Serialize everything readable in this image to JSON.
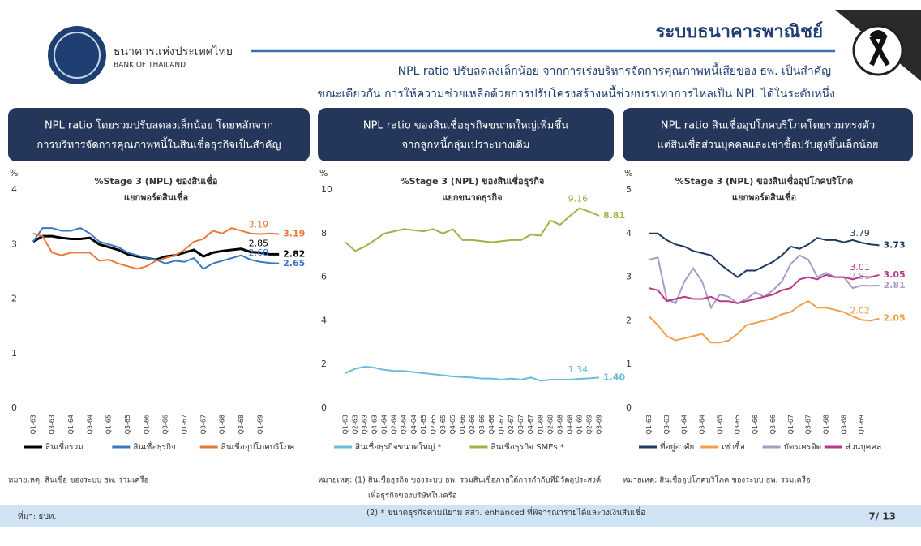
{
  "header": {
    "bank_name_th": "ธนาคารแห่งประเทศไทย",
    "bank_name_en": "BANK OF THAILAND",
    "title": "ระบบธนาคารพาณิชย์",
    "subtitle": [
      "NPL ratio ปรับลดลงเล็กน้อย จากการเร่งบริหารจัดการคุณภาพหนี้เสียของ ธพ. เป็นสำคัญ",
      "ขณะเดียวกัน การให้ความช่วยเหลือด้วยการปรับโครงสร้างหนี้ช่วยบรรเทาการไหลเป็น NPL ได้ในระดับหนึ่ง"
    ]
  },
  "panels": [
    {
      "heading": [
        "NPL ratio โดยรวมปรับลดลงเล็กน้อย โดยหลักจาก",
        "การบริหารจัดการคุณภาพหนี้ในสินเชื่อธุรกิจเป็นสำคัญ"
      ],
      "note": [
        "หมายเหตุ: สินเชื่อ ของระบบ ธพ. รวมเครือ"
      ]
    },
    {
      "heading": [
        "NPL ratio ของสินเชื่อธุรกิจขนาดใหญ่เพิ่มขึ้น",
        "จากลูกหนี้กลุ่มเปราะบางเดิม"
      ],
      "note": [
        "หมายเหตุ: (1) สินเชื่อธุรกิจ ของระบบ ธพ. รวมสินเชื่อภายใต้การกำกับที่มีวัตถุประสงค์",
        "เพื่อธุรกิจของบริษัทในเครือ"
      ]
    },
    {
      "heading": [
        "NPL ratio สินเชื่ออุปโภคบริโภคโดยรวมทรงตัว",
        "แต่สินเชื่อส่วนบุคคลและเช่าซื้อปรับสูงขึ้นเล็กน้อย"
      ],
      "note": [
        "หมายเหตุ: สินเชื่ออุปโภคบริโภค ของระบบ ธพ. รวมเครือ"
      ]
    }
  ],
  "footer": {
    "source": "ที่มา: ธปท.",
    "footnote": "(2) * ขนาดธุรกิจตามนิยาม สสว. enhanced ที่พิจารณารายได้และวงเงินสินเชื่อ",
    "page": "7/ 13"
  },
  "chart_data": [
    {
      "type": "line",
      "title": "%Stage 3 (NPL) ของสินเชื่อ",
      "subtitle": "แยกพอร์ตสินเชื่อ",
      "ylabel": "%",
      "ylim": [
        0,
        4
      ],
      "yticks": [
        0,
        1,
        2,
        3,
        4
      ],
      "grid": false,
      "categories": [
        "Q1-63",
        null,
        "Q3-63",
        null,
        "Q1-64",
        null,
        "Q3-64",
        null,
        "Q1-65",
        null,
        "Q3-65",
        null,
        "Q1-66",
        null,
        "Q3-66",
        null,
        "Q1-67",
        null,
        "Q3-67",
        null,
        "Q1-68",
        null,
        "Q3-68",
        null,
        "Q1-69",
        null,
        null
      ],
      "series": [
        {
          "name": "สินเชื่อรวม",
          "color": "#000000",
          "values": [
            3.05,
            3.15,
            3.15,
            3.12,
            3.1,
            3.1,
            3.12,
            3.0,
            2.95,
            2.9,
            2.82,
            2.78,
            2.75,
            2.72,
            2.78,
            2.8,
            2.85,
            2.9,
            2.78,
            2.85,
            2.88,
            2.9,
            2.92,
            2.86,
            2.85,
            2.82,
            2.82
          ],
          "value_labels": [
            null,
            null,
            null,
            null,
            null,
            null,
            null,
            null,
            null,
            null,
            null,
            null,
            null,
            null,
            null,
            null,
            null,
            null,
            null,
            null,
            null,
            null,
            null,
            null,
            "2.85",
            null,
            "2.82"
          ]
        },
        {
          "name": "สินเชื่อธุรกิจ",
          "color": "#3b78c4",
          "values": [
            3.05,
            3.3,
            3.3,
            3.25,
            3.25,
            3.3,
            3.2,
            3.05,
            3.0,
            2.95,
            2.85,
            2.8,
            2.75,
            2.72,
            2.65,
            2.7,
            2.68,
            2.75,
            2.55,
            2.65,
            2.7,
            2.75,
            2.8,
            2.72,
            2.68,
            2.66,
            2.65
          ],
          "value_labels": [
            null,
            null,
            null,
            null,
            null,
            null,
            null,
            null,
            null,
            null,
            null,
            null,
            null,
            null,
            null,
            null,
            null,
            null,
            null,
            null,
            null,
            null,
            null,
            null,
            "2.68",
            null,
            "2.65"
          ]
        },
        {
          "name": "สินเชื่ออุปโภคบริโภค",
          "color": "#e8793a",
          "values": [
            3.2,
            3.15,
            2.85,
            2.8,
            2.85,
            2.85,
            2.85,
            2.7,
            2.72,
            2.65,
            2.6,
            2.55,
            2.6,
            2.7,
            2.75,
            2.8,
            2.9,
            3.05,
            3.1,
            3.25,
            3.2,
            3.3,
            3.25,
            3.2,
            3.19,
            3.2,
            3.19
          ],
          "value_labels": [
            null,
            null,
            null,
            null,
            null,
            null,
            null,
            null,
            null,
            null,
            null,
            null,
            null,
            null,
            null,
            null,
            null,
            null,
            null,
            null,
            null,
            null,
            null,
            null,
            "3.19",
            null,
            "3.19"
          ]
        }
      ]
    },
    {
      "type": "line",
      "title": "%Stage 3 (NPL) ของสินเชื่อธุรกิจ",
      "subtitle": "แยกขนาดธุรกิจ",
      "ylabel": "%",
      "ylim": [
        0,
        10
      ],
      "yticks": [
        0,
        2,
        4,
        6,
        8,
        10
      ],
      "grid": false,
      "categories": [
        "Q1-63",
        "Q2-63",
        "Q3-63",
        "Q4-63",
        "Q1-64",
        "Q2-64",
        "Q3-64",
        "Q4-64",
        "Q1-65",
        "Q2-65",
        "Q3-65",
        "Q4-65",
        "Q1-66",
        "Q2-66",
        "Q3-66",
        "Q4-66",
        "Q1-67",
        "Q2-67",
        "Q3-67",
        "Q4-67",
        "Q1-68",
        "Q2-68",
        "Q3-68",
        "Q4-68",
        "Q1-69",
        "Q2-69",
        "Q3-69"
      ],
      "series": [
        {
          "name": "สินเชื่อธุรกิจขนาดใหญ่ *",
          "color": "#6bbcd6",
          "values": [
            1.6,
            1.8,
            1.9,
            1.85,
            1.75,
            1.7,
            1.7,
            1.65,
            1.6,
            1.55,
            1.5,
            1.45,
            1.42,
            1.4,
            1.35,
            1.35,
            1.3,
            1.35,
            1.3,
            1.4,
            1.25,
            1.3,
            1.3,
            1.3,
            1.34,
            1.36,
            1.4
          ],
          "value_labels": [
            null,
            null,
            null,
            null,
            null,
            null,
            null,
            null,
            null,
            null,
            null,
            null,
            null,
            null,
            null,
            null,
            null,
            null,
            null,
            null,
            null,
            null,
            null,
            null,
            "1.34",
            null,
            "1.40"
          ]
        },
        {
          "name": "สินเชื่อธุรกิจ SMEs *",
          "color": "#9bb544",
          "values": [
            7.6,
            7.2,
            7.4,
            7.7,
            8.0,
            8.1,
            8.2,
            8.15,
            8.1,
            8.2,
            8.0,
            8.2,
            7.7,
            7.7,
            7.65,
            7.6,
            7.65,
            7.7,
            7.7,
            7.95,
            7.9,
            8.6,
            8.4,
            8.8,
            9.16,
            9.0,
            8.81
          ],
          "value_labels": [
            null,
            null,
            null,
            null,
            null,
            null,
            null,
            null,
            null,
            null,
            null,
            null,
            null,
            null,
            null,
            null,
            null,
            null,
            null,
            null,
            null,
            null,
            null,
            null,
            "9.16",
            null,
            "8.81"
          ]
        }
      ]
    },
    {
      "type": "line",
      "title": "%Stage 3 (NPL) ของสินเชื่ออุปโภคบริโภค",
      "subtitle": "แยกพอร์ตสินเชื่อ",
      "ylabel": "%",
      "ylim": [
        0,
        5
      ],
      "yticks": [
        0,
        1,
        2,
        3,
        4,
        5
      ],
      "grid": false,
      "categories": [
        "Q1-63",
        null,
        "Q3-63",
        null,
        "Q1-64",
        null,
        "Q3-64",
        null,
        "Q1-65",
        null,
        "Q3-65",
        null,
        "Q1-66",
        null,
        "Q3-66",
        null,
        "Q1-67",
        null,
        "Q3-67",
        null,
        "Q1-68",
        null,
        "Q3-68",
        null,
        "Q1-69",
        null,
        null
      ],
      "series": [
        {
          "name": "ที่อยู่อาศัย",
          "color": "#1f3a5f",
          "values": [
            4.0,
            4.0,
            3.85,
            3.75,
            3.7,
            3.6,
            3.55,
            3.5,
            3.3,
            3.15,
            3.0,
            3.15,
            3.15,
            3.25,
            3.35,
            3.5,
            3.7,
            3.65,
            3.75,
            3.9,
            3.85,
            3.85,
            3.8,
            3.85,
            3.79,
            3.75,
            3.73
          ],
          "value_labels": [
            null,
            null,
            null,
            null,
            null,
            null,
            null,
            null,
            null,
            null,
            null,
            null,
            null,
            null,
            null,
            null,
            null,
            null,
            null,
            null,
            null,
            null,
            null,
            null,
            "3.79",
            null,
            "3.73"
          ]
        },
        {
          "name": "เช่าซื้อ",
          "color": "#f0a048",
          "values": [
            2.1,
            1.9,
            1.65,
            1.55,
            1.6,
            1.65,
            1.7,
            1.5,
            1.5,
            1.55,
            1.7,
            1.9,
            1.95,
            2.0,
            2.05,
            2.15,
            2.2,
            2.35,
            2.45,
            2.3,
            2.3,
            2.25,
            2.2,
            2.1,
            2.02,
            2.0,
            2.05
          ],
          "value_labels": [
            null,
            null,
            null,
            null,
            null,
            null,
            null,
            null,
            null,
            null,
            null,
            null,
            null,
            null,
            null,
            null,
            null,
            null,
            null,
            null,
            null,
            null,
            null,
            null,
            "2.02",
            null,
            "2.05"
          ]
        },
        {
          "name": "บัตรเครดิต",
          "color": "#a89bc8",
          "values": [
            3.4,
            3.45,
            2.5,
            2.4,
            2.9,
            3.2,
            2.9,
            2.3,
            2.6,
            2.55,
            2.4,
            2.5,
            2.65,
            2.55,
            2.7,
            2.9,
            3.3,
            3.5,
            3.4,
            3.0,
            3.1,
            3.0,
            3.0,
            2.75,
            2.81,
            2.8,
            2.81
          ],
          "value_labels": [
            null,
            null,
            null,
            null,
            null,
            null,
            null,
            null,
            null,
            null,
            null,
            null,
            null,
            null,
            null,
            null,
            null,
            null,
            null,
            null,
            null,
            null,
            null,
            null,
            "2.81",
            null,
            "2.81"
          ]
        },
        {
          "name": "ส่วนบุคคล",
          "color": "#b8398a",
          "values": [
            2.75,
            2.7,
            2.45,
            2.5,
            2.55,
            2.5,
            2.5,
            2.55,
            2.45,
            2.45,
            2.4,
            2.45,
            2.5,
            2.55,
            2.6,
            2.7,
            2.75,
            2.95,
            3.0,
            2.95,
            3.05,
            3.0,
            3.0,
            2.95,
            3.01,
            3.0,
            3.05
          ],
          "value_labels": [
            null,
            null,
            null,
            null,
            null,
            null,
            null,
            null,
            null,
            null,
            null,
            null,
            null,
            null,
            null,
            null,
            null,
            null,
            null,
            null,
            null,
            null,
            null,
            null,
            "3.01",
            null,
            "3.05"
          ]
        }
      ]
    }
  ]
}
